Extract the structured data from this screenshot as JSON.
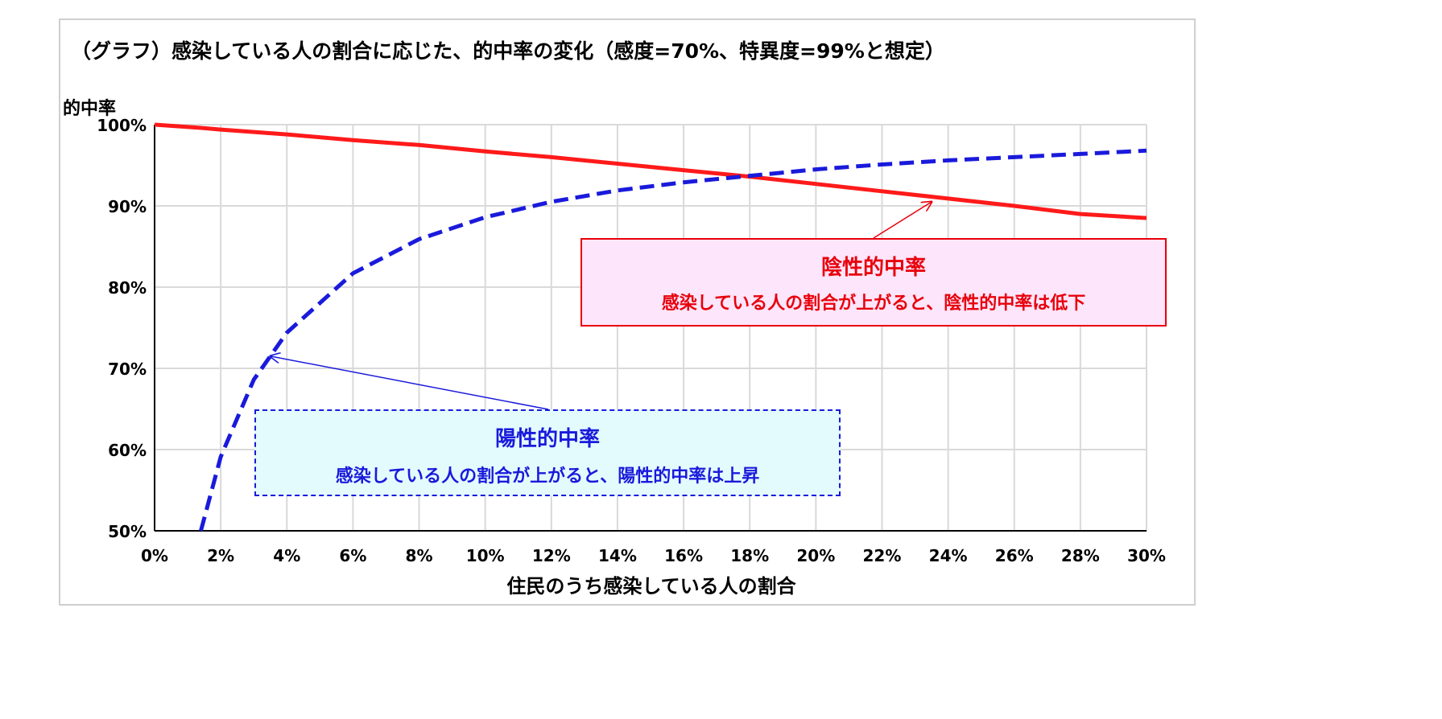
{
  "chart_data": {
    "type": "line",
    "title": "（グラフ）感染している人の割合に応じた、的中率の変化（感度=70%、特異度=99%と想定）",
    "xlabel": "住民のうち感染している人の割合",
    "ylabel": "的中率",
    "xlim": [
      0,
      30
    ],
    "ylim": [
      50,
      100
    ],
    "x_tick_labels": [
      "0%",
      "2%",
      "4%",
      "6%",
      "8%",
      "10%",
      "12%",
      "14%",
      "16%",
      "18%",
      "20%",
      "22%",
      "24%",
      "26%",
      "28%",
      "30%"
    ],
    "y_tick_labels": [
      "50%",
      "60%",
      "70%",
      "80%",
      "90%",
      "100%"
    ],
    "grid": true,
    "x": [
      1.4,
      2,
      3,
      4,
      6,
      8,
      10,
      12,
      14,
      16,
      18,
      20,
      22,
      24,
      26,
      28,
      30
    ],
    "series": [
      {
        "key": "npv",
        "color": "#ff1a1a",
        "style": "solid",
        "values": [
          99.6,
          99.4,
          99.1,
          98.8,
          98.1,
          97.5,
          96.7,
          96.0,
          95.2,
          94.4,
          93.6,
          92.7,
          91.8,
          90.9,
          90.0,
          89.0,
          88.5
        ]
      },
      {
        "key": "ppv",
        "color": "#1a1adc",
        "style": "dashed",
        "values": [
          50.0,
          59.1,
          68.6,
          74.4,
          81.7,
          85.9,
          88.6,
          90.5,
          91.9,
          92.9,
          93.7,
          94.5,
          95.1,
          95.6,
          96.0,
          96.4,
          96.8
        ]
      }
    ],
    "annotations": [
      {
        "key": "npv",
        "title": "陰性的中率",
        "text": "感染している人の割合が上がると、陰性的中率は低下",
        "color": "#e8000b",
        "background": "#fde5fb",
        "border": "solid",
        "points_to": [
          23.5,
          90.5
        ]
      },
      {
        "key": "ppv",
        "title": "陽性的中率",
        "text": "感染している人の割合が上がると、陽性的中率は上昇",
        "color": "#1a1adc",
        "background": "#e4fbfd",
        "border": "dashed",
        "points_to": [
          3.5,
          71.5
        ]
      }
    ]
  }
}
